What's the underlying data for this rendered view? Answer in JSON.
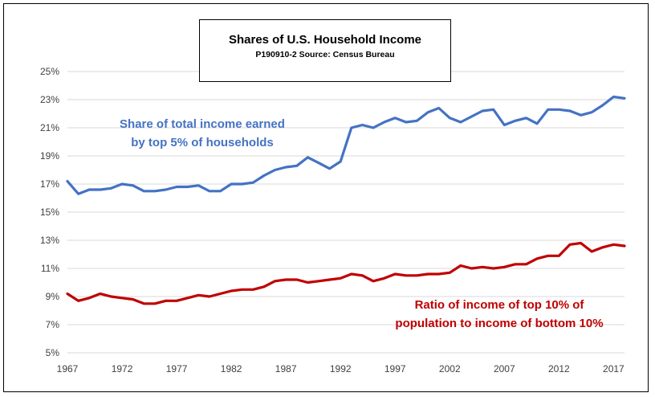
{
  "chart_data": {
    "type": "line",
    "title": "Shares of U.S. Household Income",
    "subtitle": "P190910-2 Source: Census Bureau",
    "xlabel": "",
    "ylabel": "",
    "xlim": [
      1967,
      2018
    ],
    "ylim": [
      5,
      25
    ],
    "grid": true,
    "x_ticks": [
      "1967",
      "1972",
      "1977",
      "1982",
      "1987",
      "1992",
      "1997",
      "2002",
      "2007",
      "2012",
      "2017"
    ],
    "y_ticks": [
      "5%",
      "7%",
      "9%",
      "11%",
      "13%",
      "15%",
      "17%",
      "19%",
      "21%",
      "23%",
      "25%"
    ],
    "x": [
      1967,
      1968,
      1969,
      1970,
      1971,
      1972,
      1973,
      1974,
      1975,
      1976,
      1977,
      1978,
      1979,
      1980,
      1981,
      1982,
      1983,
      1984,
      1985,
      1986,
      1987,
      1988,
      1989,
      1990,
      1991,
      1992,
      1993,
      1994,
      1995,
      1996,
      1997,
      1998,
      1999,
      2000,
      2001,
      2002,
      2003,
      2004,
      2005,
      2006,
      2007,
      2008,
      2009,
      2010,
      2011,
      2012,
      2013,
      2014,
      2015,
      2016,
      2017,
      2018
    ],
    "series": [
      {
        "label_lines": [
          "Share of total income earned",
          "by top 5% of households"
        ],
        "color": "#4472c4",
        "values": [
          17.2,
          16.3,
          16.6,
          16.6,
          16.7,
          17.0,
          16.9,
          16.5,
          16.5,
          16.6,
          16.8,
          16.8,
          16.9,
          16.5,
          16.5,
          17.0,
          17.0,
          17.1,
          17.6,
          18.0,
          18.2,
          18.3,
          18.9,
          18.5,
          18.1,
          18.6,
          21.0,
          21.2,
          21.0,
          21.4,
          21.7,
          21.4,
          21.5,
          22.1,
          22.4,
          21.7,
          21.4,
          21.8,
          22.2,
          22.3,
          21.2,
          21.5,
          21.7,
          21.3,
          22.3,
          22.3,
          22.2,
          21.9,
          22.1,
          22.6,
          23.2,
          23.1
        ]
      },
      {
        "label_lines": [
          "Ratio of income of top 10% of",
          "population to income of bottom 10%"
        ],
        "color": "#c00000",
        "values": [
          9.2,
          8.7,
          8.9,
          9.2,
          9.0,
          8.9,
          8.8,
          8.5,
          8.5,
          8.7,
          8.7,
          8.9,
          9.1,
          9.0,
          9.2,
          9.4,
          9.5,
          9.5,
          9.7,
          10.1,
          10.2,
          10.2,
          10.0,
          10.1,
          10.2,
          10.3,
          10.6,
          10.5,
          10.1,
          10.3,
          10.6,
          10.5,
          10.5,
          10.6,
          10.6,
          10.7,
          11.2,
          11.0,
          11.1,
          11.0,
          11.1,
          11.3,
          11.3,
          11.7,
          11.9,
          11.9,
          12.7,
          12.8,
          12.2,
          12.5,
          12.7,
          12.6
        ]
      }
    ]
  }
}
